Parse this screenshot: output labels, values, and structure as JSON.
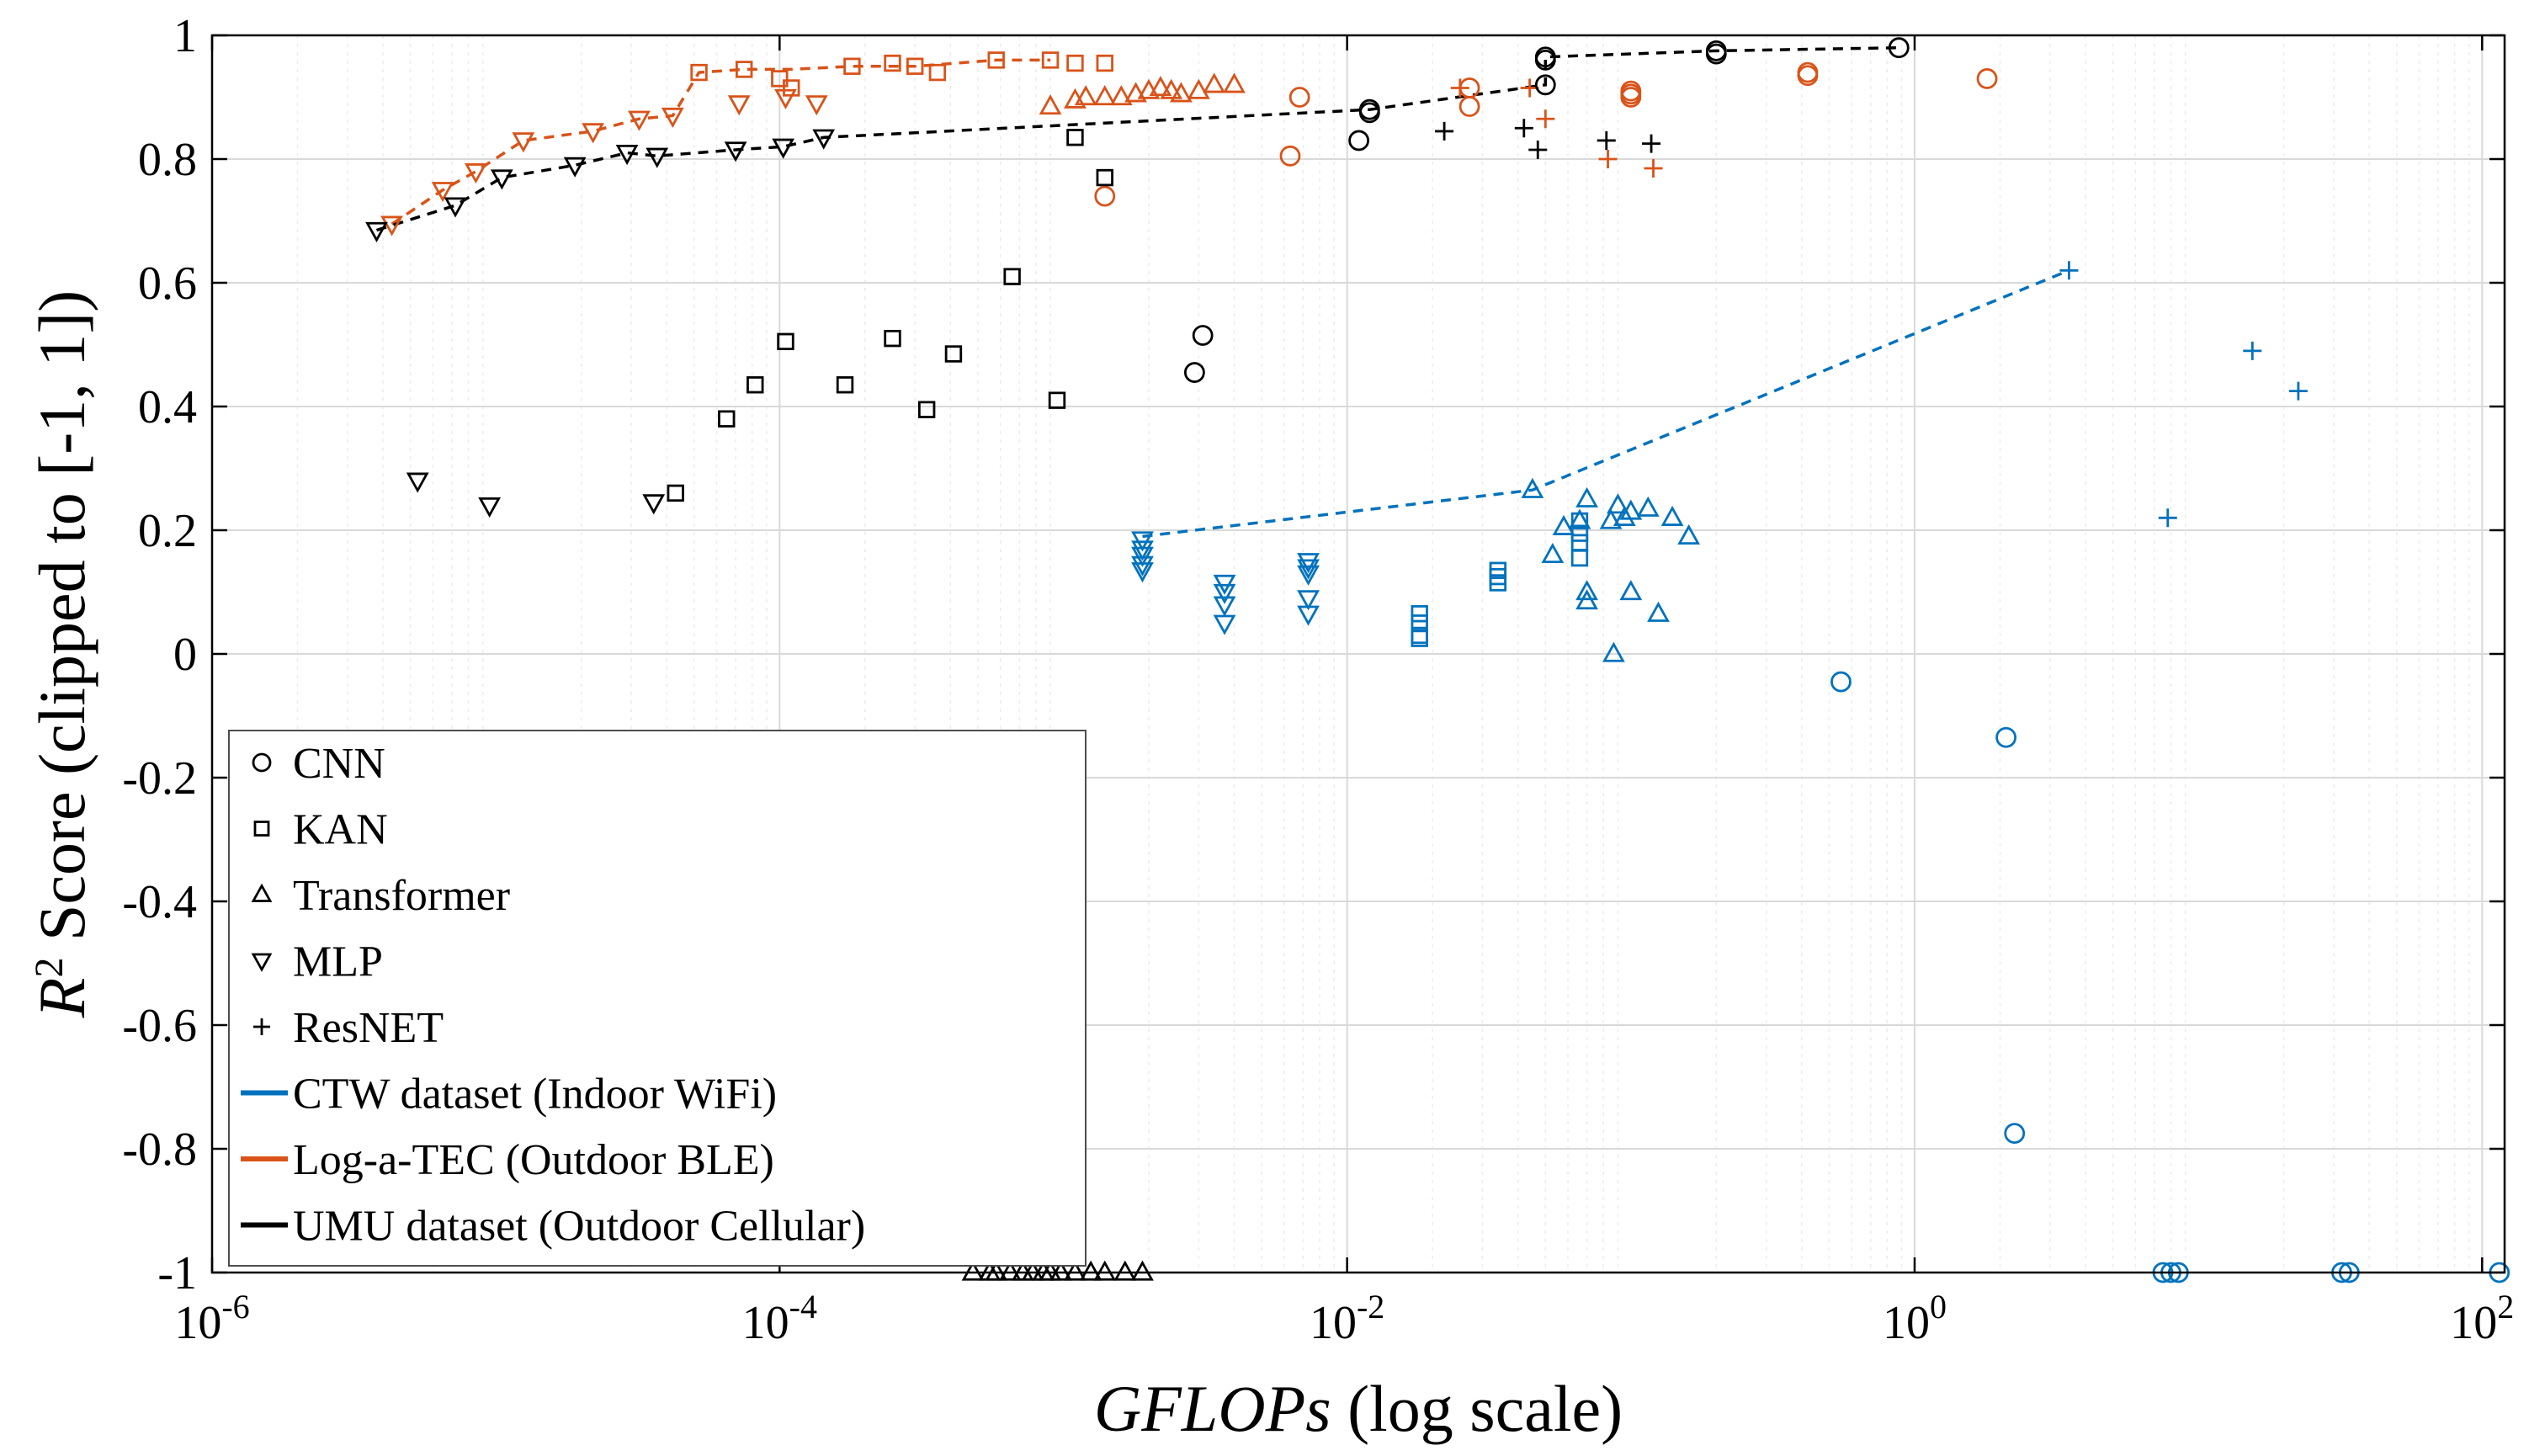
{
  "chart_data": {
    "type": "scatter",
    "title": "",
    "xlabel_italic": "GFLOPs",
    "xlabel_rest": " (log scale)",
    "ylabel_main": "R",
    "ylabel_sup": "2",
    "ylabel_rest": " Score (clipped to [-1, 1])",
    "xscale": "log",
    "xlim": [
      1e-06,
      120
    ],
    "ylim": [
      -1,
      1
    ],
    "grid": true,
    "legend_position": "lower-left",
    "xticks": [
      {
        "value": 1e-06,
        "base": "10",
        "exp": "-6"
      },
      {
        "value": 0.0001,
        "base": "10",
        "exp": "-4"
      },
      {
        "value": 0.01,
        "base": "10",
        "exp": "-2"
      },
      {
        "value": 1,
        "base": "10",
        "exp": "0"
      },
      {
        "value": 100,
        "base": "10",
        "exp": "2"
      }
    ],
    "yticks": [
      {
        "value": 1,
        "label": "1"
      },
      {
        "value": 0.8,
        "label": "0.8"
      },
      {
        "value": 0.6,
        "label": "0.6"
      },
      {
        "value": 0.4,
        "label": "0.4"
      },
      {
        "value": 0.2,
        "label": "0.2"
      },
      {
        "value": 0,
        "label": "0"
      },
      {
        "value": -0.2,
        "label": "-0.2"
      },
      {
        "value": -0.4,
        "label": "-0.4"
      },
      {
        "value": -0.6,
        "label": "-0.6"
      },
      {
        "value": -0.8,
        "label": "-0.8"
      },
      {
        "value": -1,
        "label": "-1"
      }
    ],
    "datasets": [
      {
        "key": "ctw",
        "name": "CTW dataset (Indoor WiFi)",
        "color": "#0072BD"
      },
      {
        "key": "log",
        "name": "Log-a-TEC (Outdoor BLE)",
        "color": "#D95319"
      },
      {
        "key": "umu",
        "name": "UMU dataset (Outdoor Cellular)",
        "color": "#000000"
      }
    ],
    "models": [
      {
        "key": "cnn",
        "name": "CNN",
        "marker": "circle"
      },
      {
        "key": "kan",
        "name": "KAN",
        "marker": "square"
      },
      {
        "key": "transformer",
        "name": "Transformer",
        "marker": "triangle-up"
      },
      {
        "key": "mlp",
        "name": "MLP",
        "marker": "triangle-down"
      },
      {
        "key": "resnet",
        "name": "ResNET",
        "marker": "plus"
      }
    ],
    "pareto_fronts": [
      {
        "dataset": "ctw",
        "points": [
          [
            0.0019,
            0.19
          ],
          [
            0.045,
            0.265
          ],
          [
            3.5,
            0.62
          ]
        ]
      },
      {
        "dataset": "log",
        "points": [
          [
            4.3e-06,
            0.695
          ],
          [
            6.5e-06,
            0.75
          ],
          [
            8.5e-06,
            0.78
          ],
          [
            1.25e-05,
            0.83
          ],
          [
            2.2e-05,
            0.845
          ],
          [
            3.2e-05,
            0.865
          ],
          [
            4.2e-05,
            0.87
          ],
          [
            5.2e-05,
            0.94
          ],
          [
            7.5e-05,
            0.945
          ],
          [
            0.00011,
            0.945
          ],
          [
            0.00018,
            0.95
          ],
          [
            0.0003,
            0.95
          ],
          [
            0.00058,
            0.96
          ],
          [
            0.0009,
            0.96
          ]
        ]
      },
      {
        "dataset": "umu",
        "points": [
          [
            3.8e-06,
            0.685
          ],
          [
            7.2e-06,
            0.725
          ],
          [
            1.05e-05,
            0.77
          ],
          [
            1.9e-05,
            0.79
          ],
          [
            2.9e-05,
            0.81
          ],
          [
            3.7e-05,
            0.805
          ],
          [
            7e-05,
            0.815
          ],
          [
            0.000103,
            0.82
          ],
          [
            0.000143,
            0.835
          ],
          [
            0.012,
            0.88
          ],
          [
            0.05,
            0.92
          ],
          [
            0.05,
            0.965
          ],
          [
            0.2,
            0.975
          ],
          [
            0.88,
            0.98
          ]
        ]
      }
    ],
    "series": [
      {
        "dataset": "ctw",
        "model": "cnn",
        "points": [
          [
            0.55,
            -0.045
          ],
          [
            2.1,
            -0.135
          ],
          [
            2.25,
            -0.775
          ],
          [
            7.5,
            -1
          ],
          [
            8,
            -1
          ],
          [
            8.5,
            -1
          ],
          [
            32,
            -1
          ],
          [
            34,
            -1
          ],
          [
            115,
            -1
          ]
        ]
      },
      {
        "dataset": "ctw",
        "model": "kan",
        "points": [
          [
            0.018,
            0.065
          ],
          [
            0.018,
            0.05
          ],
          [
            0.018,
            0.03
          ],
          [
            0.018,
            0.025
          ],
          [
            0.034,
            0.135
          ],
          [
            0.034,
            0.125
          ],
          [
            0.034,
            0.115
          ],
          [
            0.066,
            0.215
          ],
          [
            0.066,
            0.195
          ],
          [
            0.066,
            0.18
          ],
          [
            0.066,
            0.155
          ]
        ]
      },
      {
        "dataset": "ctw",
        "model": "transformer",
        "points": [
          [
            0.045,
            0.265
          ],
          [
            0.053,
            0.16
          ],
          [
            0.058,
            0.205
          ],
          [
            0.066,
            0.215
          ],
          [
            0.07,
            0.25
          ],
          [
            0.07,
            0.1
          ],
          [
            0.07,
            0.085
          ],
          [
            0.085,
            0.215
          ],
          [
            0.09,
            0.24
          ],
          [
            0.095,
            0.22
          ],
          [
            0.1,
            0.1
          ],
          [
            0.1,
            0.23
          ],
          [
            0.115,
            0.235
          ],
          [
            0.125,
            0.065
          ],
          [
            0.14,
            0.22
          ],
          [
            0.16,
            0.19
          ],
          [
            0.087,
            0
          ]
        ]
      },
      {
        "dataset": "ctw",
        "model": "mlp",
        "points": [
          [
            0.0019,
            0.185
          ],
          [
            0.0019,
            0.17
          ],
          [
            0.0019,
            0.16
          ],
          [
            0.0019,
            0.145
          ],
          [
            0.0019,
            0.135
          ],
          [
            0.0037,
            0.115
          ],
          [
            0.0037,
            0.1
          ],
          [
            0.0037,
            0.08
          ],
          [
            0.0037,
            0.05
          ],
          [
            0.0073,
            0.15
          ],
          [
            0.0073,
            0.14
          ],
          [
            0.0073,
            0.13
          ],
          [
            0.0073,
            0.09
          ],
          [
            0.0073,
            0.065
          ]
        ]
      },
      {
        "dataset": "ctw",
        "model": "resnet",
        "points": [
          [
            3.5,
            0.62
          ],
          [
            15.5,
            0.49
          ],
          [
            22.5,
            0.425
          ],
          [
            7.8,
            0.22
          ]
        ]
      },
      {
        "dataset": "log",
        "model": "cnn",
        "points": [
          [
            0.0014,
            0.74
          ],
          [
            0.0063,
            0.805
          ],
          [
            0.0068,
            0.9
          ],
          [
            0.027,
            0.915
          ],
          [
            0.027,
            0.885
          ],
          [
            0.1,
            0.91
          ],
          [
            0.1,
            0.905
          ],
          [
            0.1,
            0.9
          ],
          [
            0.42,
            0.94
          ],
          [
            0.42,
            0.935
          ],
          [
            1.8,
            0.93
          ]
        ]
      },
      {
        "dataset": "log",
        "model": "kan",
        "points": [
          [
            5.2e-05,
            0.94
          ],
          [
            7.5e-05,
            0.945
          ],
          [
            0.0001,
            0.93
          ],
          [
            0.00011,
            0.915
          ],
          [
            0.00018,
            0.95
          ],
          [
            0.00025,
            0.955
          ],
          [
            0.0003,
            0.95
          ],
          [
            0.00036,
            0.94
          ],
          [
            0.00058,
            0.96
          ],
          [
            0.0009,
            0.96
          ],
          [
            0.0011,
            0.955
          ],
          [
            0.0014,
            0.955
          ]
        ]
      },
      {
        "dataset": "log",
        "model": "transformer",
        "points": [
          [
            0.0009,
            0.885
          ],
          [
            0.0011,
            0.895
          ],
          [
            0.0012,
            0.9
          ],
          [
            0.0014,
            0.9
          ],
          [
            0.0016,
            0.9
          ],
          [
            0.0018,
            0.905
          ],
          [
            0.002,
            0.91
          ],
          [
            0.0022,
            0.915
          ],
          [
            0.0024,
            0.91
          ],
          [
            0.0026,
            0.905
          ],
          [
            0.003,
            0.91
          ],
          [
            0.0034,
            0.92
          ],
          [
            0.004,
            0.92
          ]
        ]
      },
      {
        "dataset": "log",
        "model": "mlp",
        "points": [
          [
            4.3e-06,
            0.695
          ],
          [
            6.5e-06,
            0.75
          ],
          [
            8.5e-06,
            0.78
          ],
          [
            1.25e-05,
            0.83
          ],
          [
            2.2e-05,
            0.845
          ],
          [
            3.2e-05,
            0.865
          ],
          [
            4.2e-05,
            0.87
          ],
          [
            7.2e-05,
            0.89
          ],
          [
            0.000105,
            0.9
          ],
          [
            0.000135,
            0.89
          ]
        ]
      },
      {
        "dataset": "log",
        "model": "resnet",
        "points": [
          [
            0.025,
            0.915
          ],
          [
            0.044,
            0.915
          ],
          [
            0.05,
            0.865
          ],
          [
            0.083,
            0.8
          ],
          [
            0.12,
            0.785
          ]
        ]
      },
      {
        "dataset": "umu",
        "model": "cnn",
        "points": [
          [
            0.0031,
            0.515
          ],
          [
            0.0029,
            0.455
          ],
          [
            0.011,
            0.83
          ],
          [
            0.012,
            0.88
          ],
          [
            0.012,
            0.875
          ],
          [
            0.05,
            0.92
          ],
          [
            0.05,
            0.96
          ],
          [
            0.05,
            0.965
          ],
          [
            0.2,
            0.975
          ],
          [
            0.2,
            0.97
          ],
          [
            0.88,
            0.98
          ]
        ]
      },
      {
        "dataset": "umu",
        "model": "kan",
        "points": [
          [
            4.3e-05,
            0.26
          ],
          [
            6.5e-05,
            0.38
          ],
          [
            8.2e-05,
            0.435
          ],
          [
            0.000105,
            0.505
          ],
          [
            0.00017,
            0.435
          ],
          [
            0.00025,
            0.51
          ],
          [
            0.00033,
            0.395
          ],
          [
            0.00041,
            0.485
          ],
          [
            0.00066,
            0.61
          ],
          [
            0.00095,
            0.41
          ],
          [
            0.0011,
            0.835
          ],
          [
            0.0014,
            0.77
          ]
        ]
      },
      {
        "dataset": "umu",
        "model": "transformer",
        "points": [
          [
            0.00048,
            -1
          ],
          [
            0.00055,
            -1
          ],
          [
            0.00058,
            -1
          ],
          [
            0.00065,
            -1
          ],
          [
            0.00072,
            -1
          ],
          [
            0.00078,
            -1
          ],
          [
            0.00085,
            -1
          ],
          [
            0.0009,
            -1
          ],
          [
            0.00098,
            -1
          ],
          [
            0.0011,
            -1
          ],
          [
            0.00125,
            -1
          ],
          [
            0.0014,
            -1
          ],
          [
            0.00165,
            -1
          ],
          [
            0.0019,
            -1
          ]
        ]
      },
      {
        "dataset": "umu",
        "model": "mlp",
        "points": [
          [
            3.8e-06,
            0.685
          ],
          [
            7.2e-06,
            0.725
          ],
          [
            1.05e-05,
            0.77
          ],
          [
            1.9e-05,
            0.79
          ],
          [
            2.9e-05,
            0.81
          ],
          [
            3.7e-05,
            0.805
          ],
          [
            7e-05,
            0.815
          ],
          [
            0.000103,
            0.82
          ],
          [
            0.000143,
            0.835
          ],
          [
            5.3e-06,
            0.28
          ],
          [
            9.5e-06,
            0.24
          ],
          [
            3.6e-05,
            0.245
          ]
        ]
      },
      {
        "dataset": "umu",
        "model": "resnet",
        "points": [
          [
            0.022,
            0.845
          ],
          [
            0.042,
            0.85
          ],
          [
            0.047,
            0.815
          ],
          [
            0.082,
            0.83
          ],
          [
            0.118,
            0.825
          ]
        ]
      }
    ]
  }
}
